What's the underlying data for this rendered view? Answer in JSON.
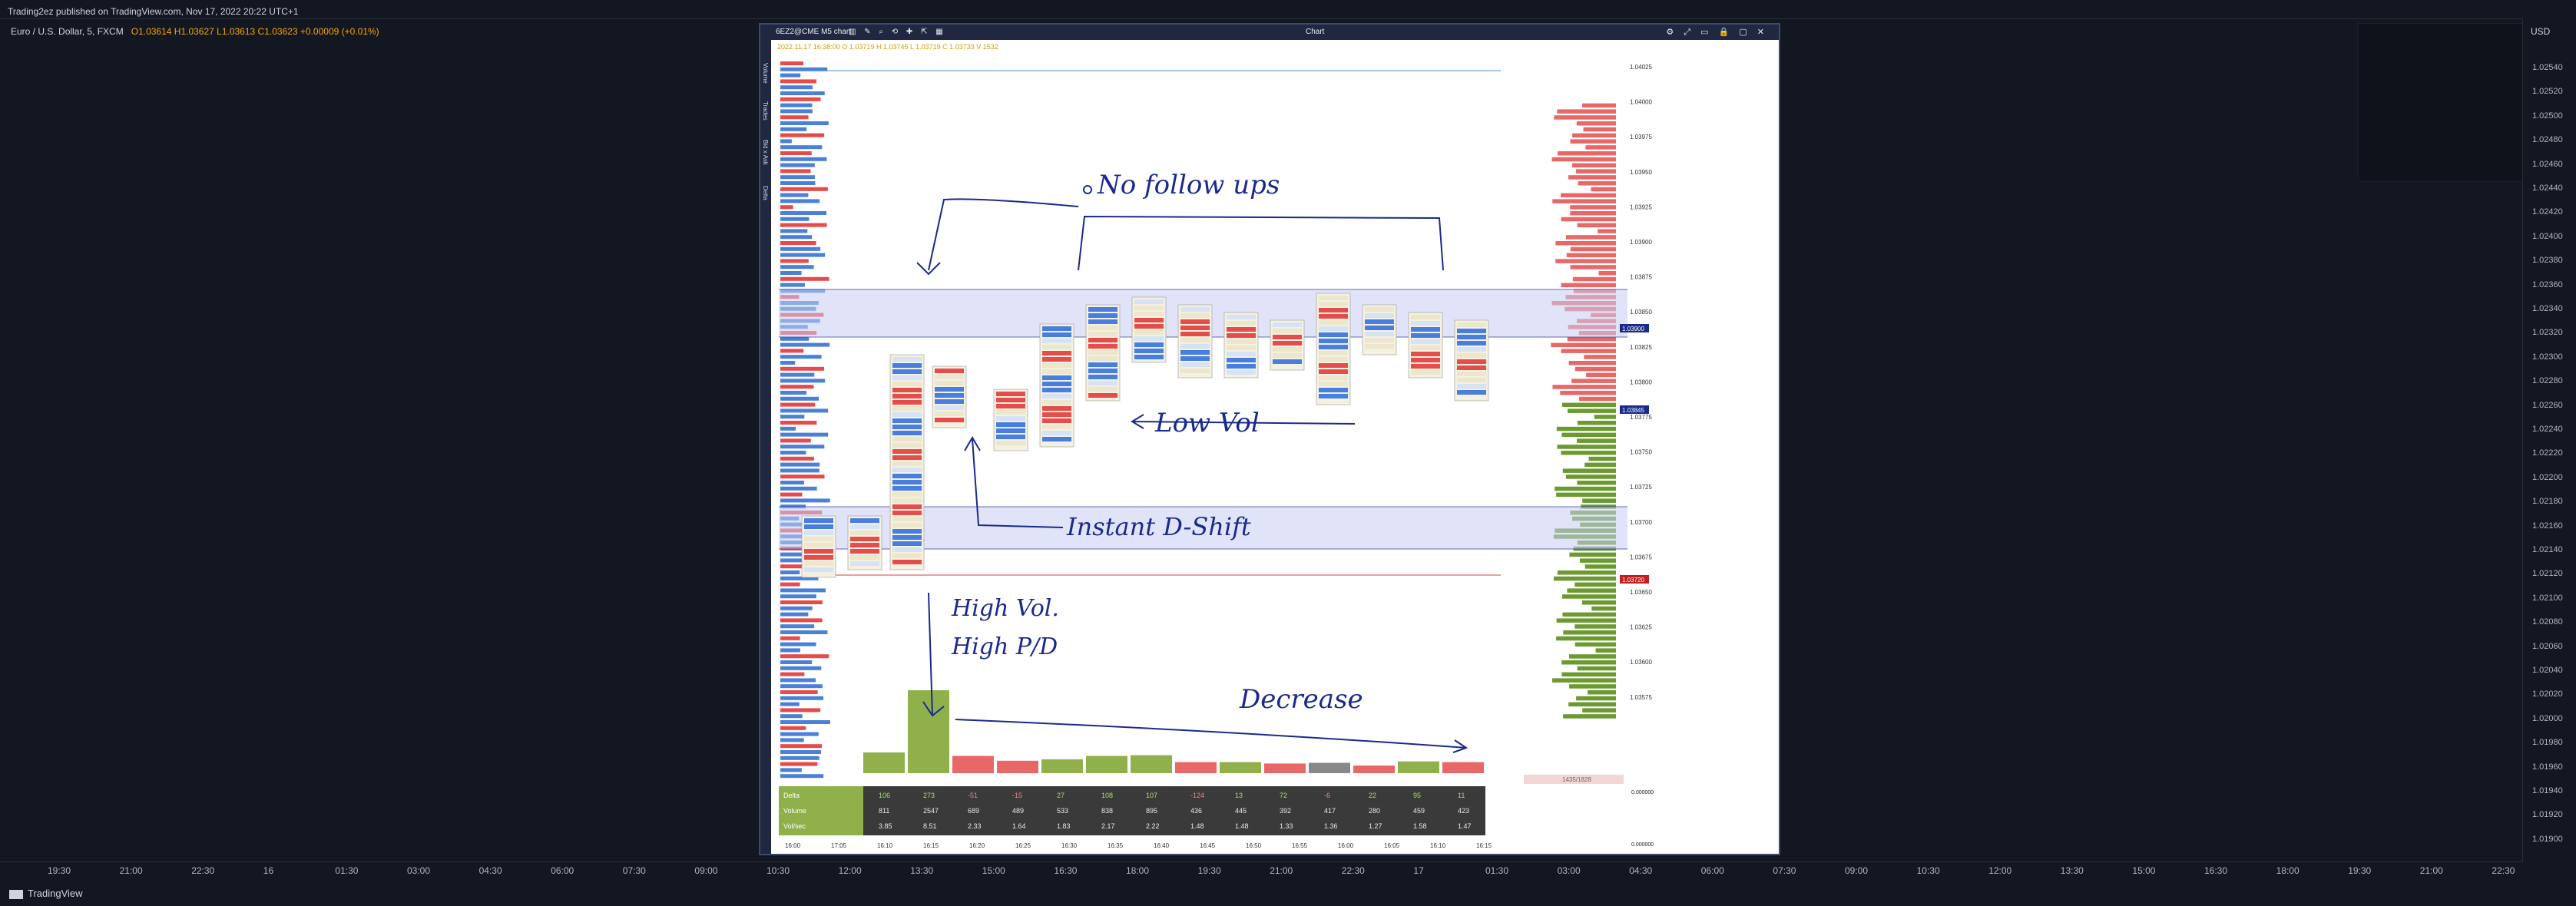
{
  "header": {
    "publisher": "Trading2ez published on TradingView.com, Nov 17, 2022 20:22 UTC+1",
    "symbol_line": "Euro / U.S. Dollar, 5, FXCM",
    "ohlc": "O1.03614 H1.03627 L1.03613 C1.03623 +0.00009 (+0.01%)"
  },
  "price_axis": {
    "currency": "USD",
    "labels": [
      "1.02540",
      "1.02520",
      "1.02500",
      "1.02480",
      "1.02460",
      "1.02440",
      "1.02420",
      "1.02400",
      "1.02380",
      "1.02360",
      "1.02340",
      "1.02320",
      "1.02300",
      "1.02280",
      "1.02260",
      "1.02240",
      "1.02220",
      "1.02200",
      "1.02180",
      "1.02160",
      "1.02140",
      "1.02120",
      "1.02100",
      "1.02080",
      "1.02060",
      "1.02040",
      "1.02020",
      "1.02000",
      "1.01980",
      "1.01960",
      "1.01940",
      "1.01920",
      "1.01900"
    ]
  },
  "time_axis": {
    "labels": [
      "19:30",
      "21:00",
      "22:30",
      "16",
      "01:30",
      "03:00",
      "04:30",
      "06:00",
      "07:30",
      "09:00",
      "10:30",
      "12:00",
      "13:30",
      "15:00",
      "16:30",
      "18:00",
      "19:30",
      "21:00",
      "22:30",
      "17",
      "01:30",
      "03:00",
      "04:30",
      "06:00",
      "07:30",
      "09:00",
      "10:30",
      "12:00",
      "13:30",
      "15:00",
      "16:30",
      "18:00",
      "19:30",
      "21:00",
      "22:30"
    ]
  },
  "footer": {
    "brand": "TradingView"
  },
  "chart_window": {
    "symbol": "6EZ2@CME",
    "timeframe": "M5 chart",
    "title": "Chart",
    "info_line": "2022.11.17 16:38:00 O 1.03719 H 1.03745 L 1.03719 C 1.03733 V 1532",
    "left_tools": [
      "Volume",
      "Trades",
      "Bid x Ask",
      "Delta"
    ],
    "inner_price_labels": [
      "1.04025",
      "1.04000",
      "1.03975",
      "1.03950",
      "1.03925",
      "1.03900",
      "1.03875",
      "1.03850",
      "1.03825",
      "1.03800",
      "1.03775",
      "1.03750",
      "1.03725",
      "1.03700",
      "1.03675",
      "1.03650",
      "1.03625",
      "1.03600",
      "1.03575"
    ],
    "highlight_labels": [
      "1.03900",
      "1.03845",
      "1.03720"
    ],
    "footer_box": "1435/1828",
    "zero_labels": [
      "0.000000",
      "0.000000"
    ],
    "time_labels": [
      "16:00",
      "17:05",
      "16:10",
      "16:15",
      "16:20",
      "16:25",
      "16:30",
      "16:35",
      "16:40",
      "16:45",
      "16:50",
      "16:55",
      "16:00",
      "16:05",
      "16:10",
      "16:15"
    ],
    "stats": {
      "rows": [
        "Delta",
        "Volume",
        "Vol/sec"
      ],
      "delta": [
        "106",
        "273",
        "-51",
        "-15",
        "27",
        "108",
        "107",
        "-124",
        "13",
        "72",
        "-6",
        "22",
        "95",
        "11"
      ],
      "volume": [
        "811",
        "2547",
        "689",
        "489",
        "533",
        "838",
        "895",
        "436",
        "445",
        "392",
        "417",
        "280",
        "459",
        "423"
      ],
      "volsec": [
        "3.85",
        "8.51",
        "2.33",
        "1.64",
        "1.83",
        "2.17",
        "2.22",
        "1.48",
        "1.48",
        "1.33",
        "1.36",
        "1.27",
        "1.58",
        "1.47"
      ]
    },
    "annotations": {
      "no_follow": "No follow ups",
      "low_vol": "Low Vol",
      "instant": "Instant D-Shift",
      "high_vol": "High Vol.",
      "high_pd": "High P/D",
      "decrease": "Decrease"
    }
  }
}
